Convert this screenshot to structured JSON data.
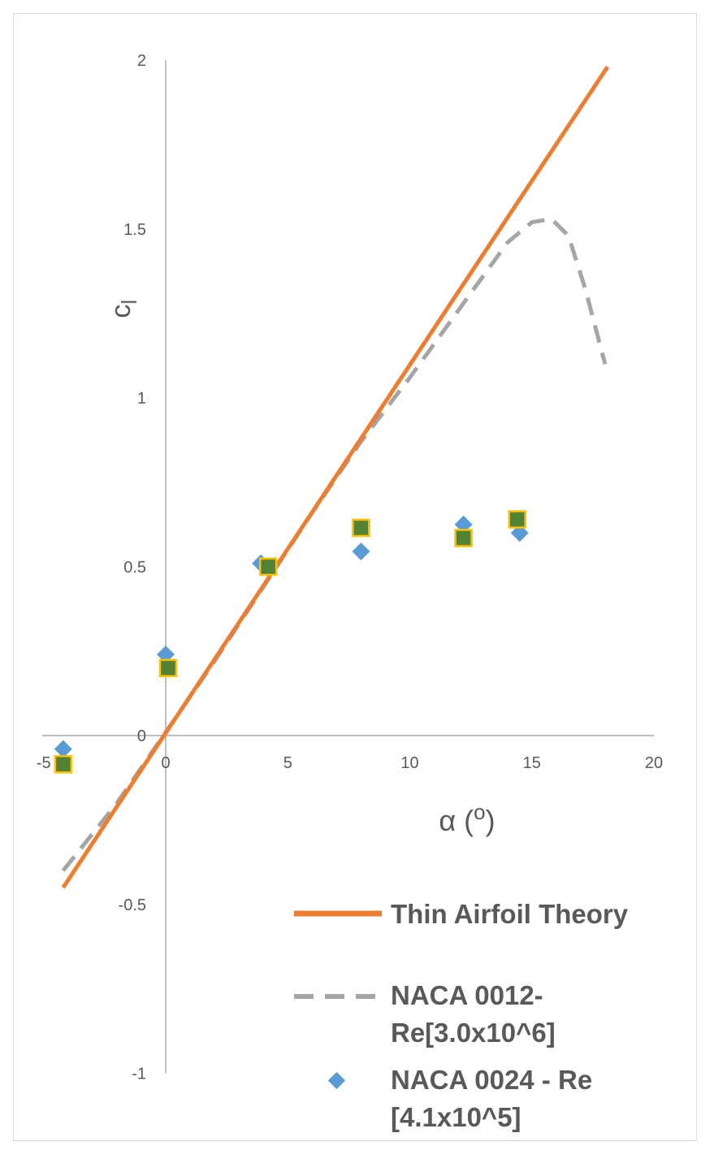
{
  "chart_data": {
    "type": "scatter",
    "title": "",
    "xlabel": "α (",
    "xlabel_sup": "o",
    "xlabel_close": ")",
    "ylabel": "c",
    "ylabel_sub": "l",
    "xlim": [
      -5,
      20
    ],
    "ylim": [
      -1,
      2
    ],
    "x_ticks": [
      -5,
      0,
      5,
      10,
      15,
      20
    ],
    "y_ticks": [
      -1,
      -0.5,
      0,
      0.5,
      1,
      1.5,
      2
    ],
    "x_tick_labels": [
      "-5",
      "0",
      "5",
      "10",
      "15",
      "20"
    ],
    "y_tick_labels": [
      "-1",
      "-0.5",
      "0",
      "0.5",
      "1",
      "1.5",
      "2"
    ],
    "grid": false,
    "legend_position": "bottom-right",
    "series": [
      {
        "name": "Thin Airfoil Theory",
        "kind": "line",
        "color": "#ed7d31",
        "x": [
          -4.2,
          18.1
        ],
        "y": [
          -0.45,
          1.98
        ]
      },
      {
        "name": "NACA 0012-Re[3.0x10^6]",
        "legend_lines": [
          "NACA 0012-",
          "Re[3.0x10^6]"
        ],
        "kind": "dashed-line",
        "color": "#a5a5a5",
        "x": [
          -4.2,
          -2,
          0,
          2,
          4,
          6,
          8,
          10,
          12,
          14,
          15,
          15.8,
          16.5,
          17.2,
          18
        ],
        "y": [
          -0.4,
          -0.2,
          0.01,
          0.22,
          0.44,
          0.66,
          0.87,
          1.06,
          1.26,
          1.46,
          1.52,
          1.53,
          1.48,
          1.32,
          1.1
        ]
      },
      {
        "name": "NACA 0024 - Re [4.1x10^5]",
        "legend_lines": [
          "NACA 0024 - Re",
          "[4.1x10^5]"
        ],
        "kind": "diamond",
        "color": "#5b9bd5",
        "x": [
          -4.2,
          0,
          3.9,
          8,
          12.2,
          14.5
        ],
        "y": [
          -0.04,
          0.24,
          0.51,
          0.545,
          0.625,
          0.6
        ]
      },
      {
        "name": "",
        "kind": "square",
        "color": "#548235",
        "edge_color": "#ffc000",
        "x": [
          -4.2,
          0.1,
          4.2,
          8,
          12.2,
          14.4
        ],
        "y": [
          -0.085,
          0.2,
          0.5,
          0.615,
          0.585,
          0.64
        ]
      }
    ]
  }
}
